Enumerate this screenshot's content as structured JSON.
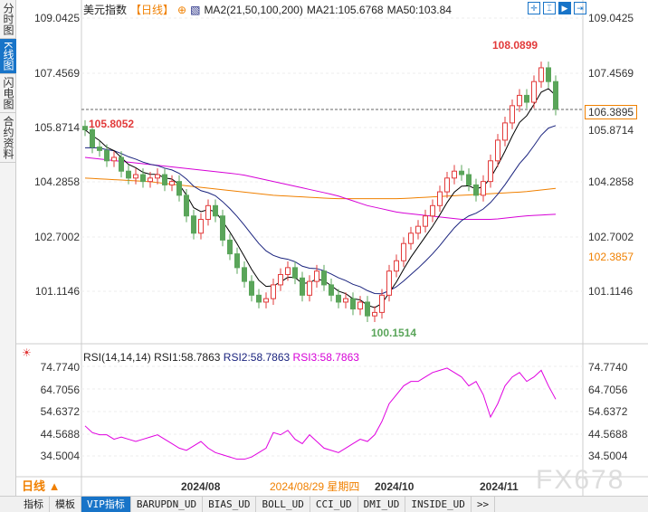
{
  "side_tabs": [
    "分时图",
    "K线图",
    "闪电图",
    "合约资料"
  ],
  "header": {
    "title": "美元指数",
    "period": "【日线】",
    "ma_label": "MA2(21,50,100,200)",
    "ma21": "MA21:105.6768",
    "ma50": "MA50:103.84"
  },
  "price_axis": [
    "109.0425",
    "107.4569",
    "105.8714",
    "104.2858",
    "102.7002",
    "101.1146"
  ],
  "last_price": "106.3895",
  "ma_price": "102.3857",
  "annotations": {
    "high": "108.0899",
    "low": "100.1514",
    "start": "105.8052"
  },
  "rsi": {
    "label": "RSI(14,14,14)",
    "rsi1": "RSI1:58.7863",
    "rsi2": "RSI2:58.7863",
    "rsi3": "RSI3:58.7863",
    "axis": [
      "74.7740",
      "64.7056",
      "54.6372",
      "44.5688",
      "34.5004"
    ]
  },
  "date_axis": {
    "period_btn": "日线 ▲",
    "d1": "2024/08",
    "cursor": "2024/08/29 星期四",
    "d2": "2024/10",
    "d3": "2024/11"
  },
  "watermark": "FX678",
  "bottom_tabs": [
    "指标",
    "模板",
    "VIP指标",
    "BARUPDN_UD",
    "BIAS_UD",
    "BOLL_UD",
    "CCI_UD",
    "DMI_UD",
    "INSIDE_UD",
    ">>"
  ],
  "colors": {
    "up": "#e23b3b",
    "down": "#5aa55a",
    "ma21": "#000000",
    "ma50": "#1a237e",
    "ma100": "#d600d6",
    "ma200": "#f08000",
    "rsi": "#e000e0"
  },
  "chart_data": {
    "type": "candlestick",
    "closes": [
      105.8,
      105.3,
      105.2,
      104.9,
      105.0,
      104.6,
      104.4,
      104.5,
      104.3,
      104.4,
      104.5,
      104.2,
      104.3,
      103.9,
      103.3,
      102.8,
      103.2,
      103.6,
      103.3,
      102.6,
      102.2,
      101.8,
      101.4,
      101.0,
      100.8,
      100.9,
      101.3,
      101.6,
      101.8,
      101.5,
      101.0,
      101.4,
      101.7,
      101.3,
      101.0,
      100.8,
      100.9,
      100.6,
      100.8,
      100.4,
      100.5,
      101.0,
      101.7,
      102.0,
      102.5,
      102.8,
      103.0,
      103.3,
      103.6,
      104.0,
      104.4,
      104.6,
      104.5,
      104.2,
      103.9,
      104.3,
      104.9,
      105.5,
      106.0,
      106.5,
      106.8,
      106.6,
      107.2,
      107.6,
      107.2,
      106.4
    ],
    "ma100": [
      105.0,
      104.9,
      104.8,
      104.7,
      104.6,
      104.5,
      104.3,
      104.1,
      103.9,
      103.6,
      103.4,
      103.3,
      103.2,
      103.2,
      103.3,
      103.35
    ],
    "ma200": [
      104.4,
      104.35,
      104.3,
      104.2,
      104.1,
      104.0,
      103.9,
      103.85,
      103.8,
      103.8,
      103.8,
      103.85,
      103.9,
      103.95,
      104.0,
      104.1
    ],
    "rsi": [
      48,
      45,
      44,
      44,
      42,
      43,
      42,
      41,
      42,
      43,
      44,
      42,
      40,
      38,
      37,
      39,
      41,
      38,
      36,
      35,
      34,
      33,
      33,
      34,
      36,
      38,
      45,
      44,
      46,
      42,
      40,
      44,
      41,
      38,
      37,
      36,
      38,
      40,
      42,
      41,
      44,
      50,
      58,
      62,
      66,
      68,
      68,
      70,
      72,
      73,
      74,
      72,
      70,
      66,
      68,
      62,
      52,
      58,
      66,
      70,
      72,
      68,
      70,
      73,
      66,
      60
    ]
  }
}
